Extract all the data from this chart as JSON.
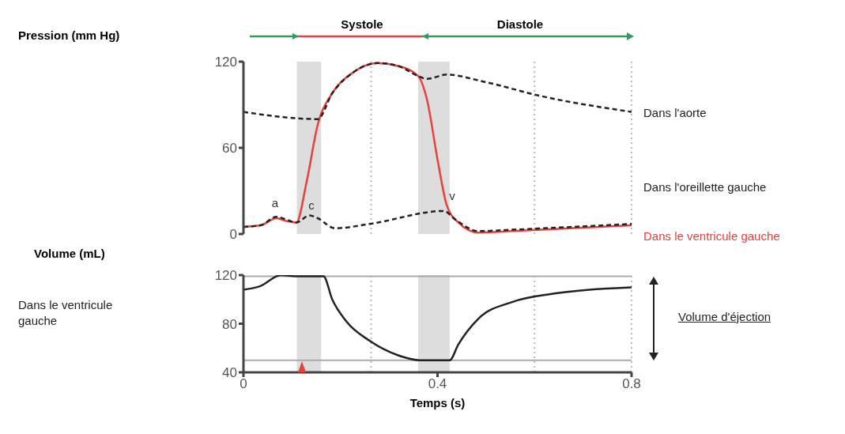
{
  "chart_data": [
    {
      "type": "line",
      "ylabel": "Pression (mm Hg)",
      "xlim": [
        0,
        0.8
      ],
      "ylim": [
        0,
        120
      ],
      "yticks": [
        0,
        60,
        120
      ],
      "tick_labels": "y",
      "series": [
        {
          "name": "Dans l'aorte",
          "color": "#222222",
          "line_style": "dashed",
          "x": [
            0,
            0.153,
            0.183,
            0.224,
            0.277,
            0.319,
            0.36,
            0.378,
            0.419,
            0.496,
            0.614,
            0.8
          ],
          "values": [
            85,
            80,
            98,
            112,
            119,
            117,
            110,
            108,
            111,
            106,
            96,
            85
          ]
        },
        {
          "name": "Dans l'oreillette gauche",
          "color": "#222222",
          "line_style": "dashed",
          "x": [
            0,
            0.035,
            0.068,
            0.089,
            0.109,
            0.136,
            0.153,
            0.189,
            0.26,
            0.413,
            0.437,
            0.484,
            0.555,
            0.8
          ],
          "values": [
            5,
            6,
            12,
            10,
            8,
            13,
            11,
            4,
            7,
            16,
            10,
            2,
            3,
            7
          ]
        },
        {
          "name": "Dans le ventricule gauche",
          "color": "#e8403a",
          "line_style": "solid",
          "x": [
            0,
            0.035,
            0.068,
            0.089,
            0.109,
            0.13,
            0.153,
            0.183,
            0.224,
            0.277,
            0.319,
            0.36,
            0.378,
            0.401,
            0.419,
            0.443,
            0.484,
            0.555,
            0.673,
            0.8
          ],
          "values": [
            5,
            6,
            11,
            9,
            8,
            36,
            76,
            98,
            112,
            119,
            117,
            110,
            94,
            50,
            20,
            8,
            1,
            2,
            4,
            6
          ]
        }
      ],
      "bands": [
        {
          "axis": "x",
          "from": 0.11,
          "to": 0.16,
          "color": "#dddddd"
        },
        {
          "axis": "x",
          "from": 0.36,
          "to": 0.425,
          "color": "#dddddd"
        }
      ],
      "ref_lines": [
        {
          "axis": "x",
          "value": 0.263,
          "color": "#bbbbbb",
          "line_style": "dotted"
        },
        {
          "axis": "x",
          "value": 0.6,
          "color": "#bbbbbb",
          "line_style": "dotted"
        },
        {
          "axis": "x",
          "value": 0.8,
          "color": "#bbbbbb",
          "line_style": "dotted"
        }
      ],
      "annotations": [
        "Systole",
        "Diastole",
        "a",
        "c",
        "v"
      ]
    },
    {
      "type": "line",
      "ylabel": "Volume (mL)",
      "xlabel": "Temps (s)",
      "xlim": [
        0,
        0.8
      ],
      "ylim": [
        40,
        120
      ],
      "yticks": [
        40,
        80,
        120
      ],
      "xticks": [
        0,
        0.4,
        0.8
      ],
      "series": [
        {
          "name": "Dans le ventricule gauche",
          "color": "#222222",
          "line_style": "solid",
          "x": [
            0,
            0.035,
            0.077,
            0.109,
            0.165,
            0.183,
            0.212,
            0.26,
            0.319,
            0.363,
            0.425,
            0.443,
            0.484,
            0.555,
            0.644,
            0.8
          ],
          "values": [
            108,
            111,
            120,
            119,
            119,
            100,
            82,
            66,
            54,
            50,
            50,
            63,
            84,
            98,
            105,
            110
          ]
        }
      ],
      "bands": [
        {
          "axis": "x",
          "from": 0.11,
          "to": 0.16,
          "color": "#dddddd"
        },
        {
          "axis": "x",
          "from": 0.36,
          "to": 0.425,
          "color": "#dddddd"
        }
      ],
      "ref_lines": [
        {
          "axis": "x",
          "value": 0.263,
          "color": "#bbbbbb",
          "line_style": "dotted"
        },
        {
          "axis": "x",
          "value": 0.6,
          "color": "#bbbbbb",
          "line_style": "dotted"
        },
        {
          "axis": "x",
          "value": 0.8,
          "color": "#bbbbbb",
          "line_style": "dotted"
        },
        {
          "axis": "y",
          "value": 119,
          "color": "#aaaaaa",
          "line_style": "solid"
        },
        {
          "axis": "y",
          "value": 50,
          "color": "#aaaaaa",
          "line_style": "solid"
        }
      ],
      "annotations": [
        "Volume d'éjection"
      ]
    }
  ]
}
